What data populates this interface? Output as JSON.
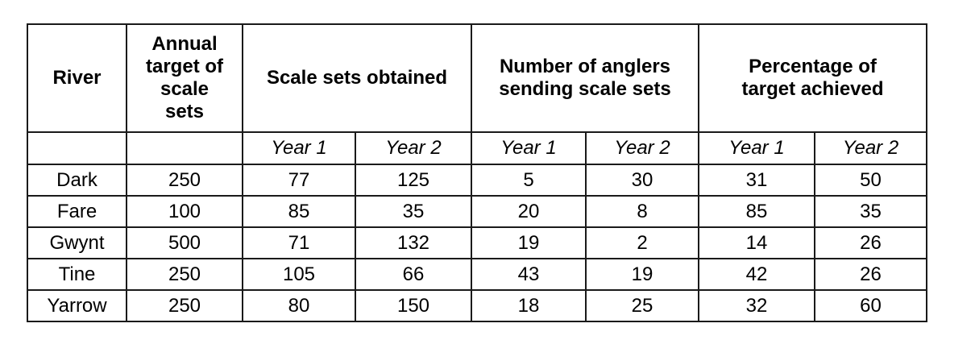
{
  "headers": {
    "river": "River",
    "annual_target": [
      "Annual",
      "target of",
      "scale",
      "sets"
    ],
    "scale_sets": "Scale sets obtained",
    "anglers": [
      "Number of anglers",
      "sending scale sets"
    ],
    "percentage": [
      "Percentage of",
      "target achieved"
    ]
  },
  "years": [
    "Year 1",
    "Year 2",
    "Year 1",
    "Year 2",
    "Year 1",
    "Year 2"
  ],
  "rows": [
    {
      "river": "Dark",
      "target": "250",
      "s1": "77",
      "s2": "125",
      "a1": "5",
      "a2": "30",
      "p1": "31",
      "p2": "50"
    },
    {
      "river": "Fare",
      "target": "100",
      "s1": "85",
      "s2": "35",
      "a1": "20",
      "a2": "8",
      "p1": "85",
      "p2": "35"
    },
    {
      "river": "Gwynt",
      "target": "500",
      "s1": "71",
      "s2": "132",
      "a1": "19",
      "a2": "2",
      "p1": "14",
      "p2": "26"
    },
    {
      "river": "Tine",
      "target": "250",
      "s1": "105",
      "s2": "66",
      "a1": "43",
      "a2": "19",
      "p1": "42",
      "p2": "26"
    },
    {
      "river": "Yarrow",
      "target": "250",
      "s1": "80",
      "s2": "150",
      "a1": "18",
      "a2": "25",
      "p1": "32",
      "p2": "60"
    }
  ]
}
